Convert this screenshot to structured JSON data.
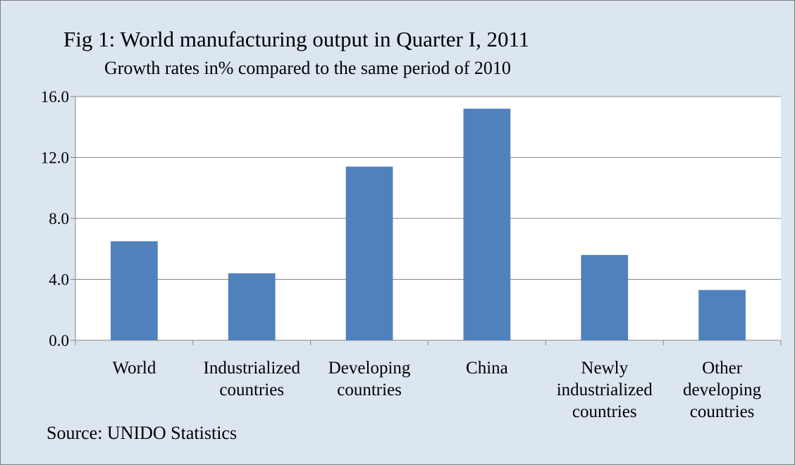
{
  "chart_data": {
    "type": "bar",
    "title": "Fig 1: World manufacturing output in Quarter I, 2011",
    "subtitle": "Growth rates in% compared to the same period of 2010",
    "categories": [
      [
        "World"
      ],
      [
        "Industrialized",
        "countries"
      ],
      [
        "Developing",
        "countries"
      ],
      [
        "China"
      ],
      [
        "Newly",
        "industrialized",
        "countries"
      ],
      [
        "Other",
        "developing",
        "countries"
      ]
    ],
    "values": [
      6.5,
      4.4,
      11.4,
      15.2,
      5.6,
      3.3
    ],
    "yticks": [
      "0.0",
      "4.0",
      "8.0",
      "12.0",
      "16.0"
    ],
    "ylim": [
      0,
      16
    ],
    "grid": true,
    "bar_color": "#4f81bd",
    "source": "Source: UNIDO Statistics"
  }
}
